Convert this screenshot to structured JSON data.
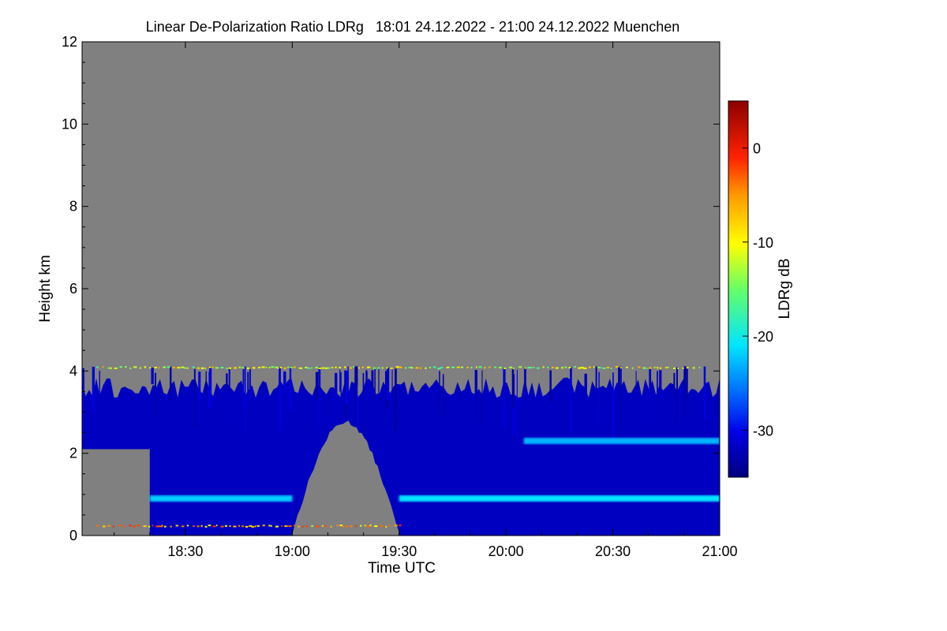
{
  "chart_data": {
    "type": "heatmap",
    "title": "Linear De-Polarization Ratio LDRg   18:01 24.12.2022 - 21:00 24.12.2022 Muenchen",
    "xlabel": "Time UTC",
    "ylabel": "Height km",
    "x_range": [
      "18:01",
      "21:00"
    ],
    "ylim": [
      0,
      12
    ],
    "x_ticks": [
      "18:30",
      "19:00",
      "19:30",
      "20:00",
      "20:30",
      "21:00"
    ],
    "y_ticks": [
      0,
      2,
      4,
      6,
      8,
      10,
      12
    ],
    "colorbar": {
      "label": "LDRg dB",
      "range": [
        -35,
        5
      ],
      "ticks": [
        0,
        -10,
        -20,
        -30
      ]
    },
    "background_color": "#808080",
    "features": [
      {
        "type": "scattering-region",
        "time_range": [
          "18:01",
          "21:00"
        ],
        "height_range_km": [
          0,
          4.0
        ],
        "ldr_db": -32
      },
      {
        "type": "clear-gap",
        "time_range": [
          "19:00",
          "19:30"
        ],
        "height_range_km": [
          0,
          2.7
        ]
      },
      {
        "type": "layer",
        "time_range": [
          "18:20",
          "19:00"
        ],
        "height_km": 0.9,
        "ldr_db": -22
      },
      {
        "type": "layer",
        "time_range": [
          "19:30",
          "21:00"
        ],
        "height_km": 0.9,
        "ldr_db": -21
      },
      {
        "type": "layer",
        "time_range": [
          "20:05",
          "21:00"
        ],
        "height_km": 2.3,
        "ldr_db": -23
      },
      {
        "type": "noise-line",
        "time_range": [
          "18:05",
          "20:55"
        ],
        "height_km": 4.1,
        "ldr_db": -10
      },
      {
        "type": "noise-line",
        "time_range": [
          "18:05",
          "19:30"
        ],
        "height_km": 0.25,
        "ldr_db": -5
      }
    ]
  }
}
